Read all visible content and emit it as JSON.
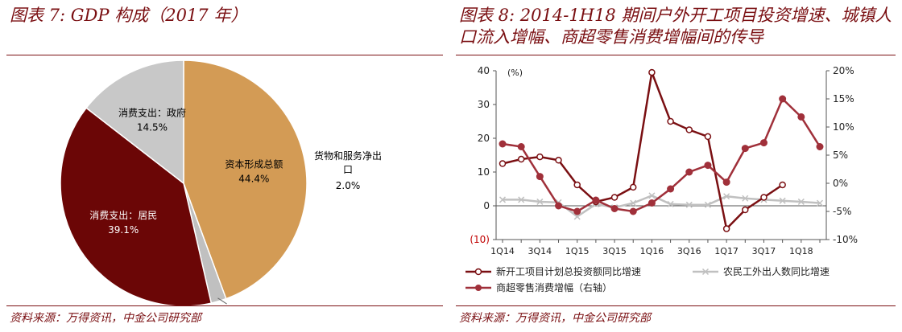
{
  "left_panel": {
    "title": "图表 7: GDP 构成（2017 年）",
    "source": "资料来源：万得资讯，中金公司研究部"
  },
  "right_panel": {
    "title": "图表 8: 2014-1H18 期间户外开工项目投资增速、城镇人口流入增幅、商超零售消费增幅间的传导",
    "source": "资料来源：万得资讯，中金公司研究部"
  },
  "chart_data": [
    {
      "type": "pie",
      "slices": [
        {
          "label": "资本形成总额",
          "value": 44.4,
          "value_label": "44.4%",
          "color": "#d39b55",
          "label_color": "#000000"
        },
        {
          "label": "货物和服务净出口",
          "value": 2.0,
          "value_label": "2.0%",
          "color": "#c0c0c0",
          "label_color": "#000000",
          "label_outside": true
        },
        {
          "label": "消费支出：居民",
          "value": 39.1,
          "value_label": "39.1%",
          "color": "#6b0606",
          "label_color": "#ffffff"
        },
        {
          "label": "消费支出：政府",
          "value": 14.5,
          "value_label": "14.5%",
          "color": "#c8c8c8",
          "label_color": "#000000"
        }
      ]
    },
    {
      "type": "line",
      "categories": [
        "1Q14",
        "2Q14",
        "3Q14",
        "4Q14",
        "1Q15",
        "2Q15",
        "3Q15",
        "4Q15",
        "1Q16",
        "2Q16",
        "3Q16",
        "4Q16",
        "1Q17",
        "2Q17",
        "3Q17",
        "4Q17",
        "1Q18",
        "2Q18"
      ],
      "x_tick_labels": [
        "1Q14",
        "3Q14",
        "1Q15",
        "3Q15",
        "1Q16",
        "3Q16",
        "1Q17",
        "3Q17",
        "1Q18"
      ],
      "y_left": {
        "unit_label": "(%)",
        "ylim": [
          -10,
          40
        ],
        "ticks": [
          40,
          30,
          20,
          10,
          0,
          -10
        ],
        "tick_labels": [
          "40",
          "30",
          "20",
          "10",
          "0",
          "(10)"
        ]
      },
      "y_right": {
        "ylim": [
          -10,
          20
        ],
        "ticks": [
          20,
          15,
          10,
          5,
          0,
          -5,
          -10
        ],
        "tick_labels": [
          "20%",
          "15%",
          "10%",
          "5%",
          "0%",
          "-5%",
          "-10%"
        ]
      },
      "series": [
        {
          "name": "新开工项目计划总投资额同比增速",
          "axis": "left",
          "color": "#7a0f12",
          "marker": "open-circle",
          "values": [
            12.5,
            13.8,
            14.5,
            13.5,
            6.2,
            1.2,
            2.5,
            5.5,
            39.5,
            25,
            22.5,
            20.5,
            -6.8,
            -1.2,
            2.5,
            6.2,
            null,
            null
          ]
        },
        {
          "name": "农民工外出人数同比增速",
          "axis": "left",
          "color": "#c0c0c0",
          "marker": "x",
          "values": [
            1.8,
            1.8,
            1.2,
            1.0,
            -3.2,
            0.5,
            -0.5,
            0.8,
            3.0,
            0.5,
            0.3,
            0.3,
            2.8,
            2.2,
            1.8,
            1.5,
            1.2,
            0.8
          ]
        },
        {
          "name": "商超零售消费增幅（右轴）",
          "axis": "right",
          "color": "#a0303a",
          "marker": "filled-circle",
          "values": [
            7.0,
            6.5,
            1.2,
            -4.0,
            -5.0,
            -3.0,
            -4.5,
            -5.0,
            -3.5,
            -1.0,
            2.0,
            3.2,
            0.2,
            6.2,
            7.2,
            15.0,
            11.8,
            6.5
          ]
        }
      ],
      "legend": {
        "placement": "bottom"
      }
    }
  ]
}
